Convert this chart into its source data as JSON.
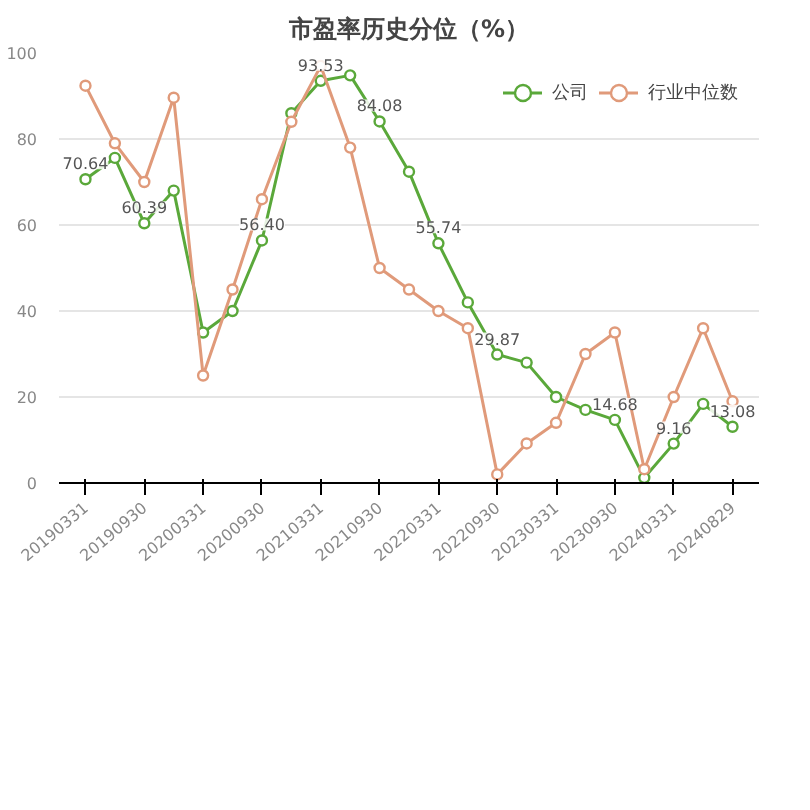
{
  "chart_data": {
    "type": "line",
    "title": "市盈率历史分位（%）",
    "categories": [
      "20190331",
      null,
      "20190930",
      null,
      "20200331",
      null,
      "20200930",
      null,
      "20210331",
      null,
      "20210930",
      null,
      "20220331",
      null,
      "20220930",
      null,
      "20230331",
      null,
      "20230930",
      null,
      "20240331",
      null,
      "20240829"
    ],
    "series": [
      {
        "name": "公司",
        "color": "#5aa83a",
        "values": [
          70.64,
          75.6,
          60.39,
          68,
          35,
          40,
          56.4,
          86,
          93.53,
          94.8,
          84.08,
          72.4,
          55.74,
          42,
          29.87,
          28,
          20,
          17,
          14.68,
          1.2,
          9.16,
          18.4,
          13.08
        ],
        "value_labels": [
          "70.64",
          null,
          "60.39",
          null,
          null,
          null,
          "56.40",
          null,
          "93.53",
          null,
          "84.08",
          null,
          "55.74",
          null,
          "29.87",
          null,
          null,
          null,
          "14.68",
          null,
          "9.16",
          null,
          "13.08"
        ]
      },
      {
        "name": "行业中位数",
        "color": "#e09a7a",
        "values": [
          92.4,
          79,
          70,
          89.6,
          25,
          45,
          66,
          84,
          97,
          78,
          50,
          45,
          40,
          36,
          2,
          9.2,
          14,
          30,
          35,
          3.2,
          20,
          36,
          19
        ]
      }
    ],
    "ylim": [
      0,
      100
    ],
    "yticks": [
      0,
      20,
      40,
      60,
      80,
      100
    ],
    "grid": "y",
    "legend": "top right",
    "marker": "circle",
    "line_style": "solid"
  }
}
